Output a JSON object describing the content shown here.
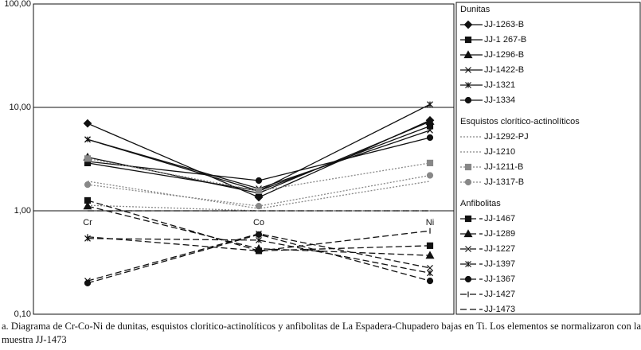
{
  "chart_data": {
    "type": "line",
    "log_scale": true,
    "grid": true,
    "categories": [
      "Cr",
      "Co",
      "Ni"
    ],
    "ylim": [
      0.1,
      100
    ],
    "yticks": [
      {
        "value": 0.1,
        "label": "0,10"
      },
      {
        "value": 1,
        "label": "1,00"
      },
      {
        "value": 10,
        "label": "10,00"
      },
      {
        "value": 100,
        "label": "100,00"
      }
    ],
    "groups": [
      {
        "name": "Dunitas",
        "color": "#111111",
        "style": "solid",
        "series": [
          {
            "name": "JJ-1263-B",
            "marker": "diamond",
            "values": [
              7.0,
              1.35,
              7.5
            ]
          },
          {
            "name": "JJ-1 267-B",
            "marker": "square",
            "values": [
              2.9,
              1.56,
              6.6
            ]
          },
          {
            "name": "JJ-1296-B",
            "marker": "triangle",
            "values": [
              3.3,
              1.48,
              7.3
            ]
          },
          {
            "name": "JJ-1422-B",
            "marker": "x",
            "values": [
              4.9,
              1.64,
              6.0
            ]
          },
          {
            "name": "JJ-1321",
            "marker": "asterisk",
            "values": [
              4.9,
              1.56,
              10.7
            ]
          },
          {
            "name": "JJ-1334",
            "marker": "circle",
            "values": [
              3.0,
              1.96,
              5.1
            ]
          }
        ]
      },
      {
        "name": "Esquistos clorítico-actinolíticos",
        "color": "#888888",
        "style": "dotted",
        "series": [
          {
            "name": "JJ-1292-PJ",
            "marker": "none",
            "values": [
              1.93,
              1.05,
              1.93
            ]
          },
          {
            "name": "JJ-1210",
            "marker": "none",
            "values": [
              1.13,
              1.0,
              1.0
            ]
          },
          {
            "name": "JJ-1211-B",
            "marker": "square",
            "values": [
              3.2,
              1.56,
              2.9
            ]
          },
          {
            "name": "JJ-1317-B",
            "marker": "circle",
            "values": [
              1.79,
              1.11,
              2.2
            ]
          }
        ]
      },
      {
        "name": "Anfibolitas",
        "color": "#111111",
        "style": "dashed",
        "series": [
          {
            "name": "JJ-1467",
            "marker": "square",
            "values": [
              1.26,
              0.41,
              0.46
            ]
          },
          {
            "name": "JJ-1289",
            "marker": "triangle",
            "values": [
              1.11,
              0.43,
              0.37
            ]
          },
          {
            "name": "JJ-1227",
            "marker": "x",
            "values": [
              0.21,
              0.6,
              0.28
            ]
          },
          {
            "name": "JJ-1397",
            "marker": "asterisk",
            "values": [
              0.54,
              0.52,
              0.25
            ]
          },
          {
            "name": "JJ-1367",
            "marker": "circle",
            "values": [
              0.2,
              0.59,
              0.21
            ]
          },
          {
            "name": "JJ-1427",
            "marker": "bar",
            "values": [
              0.56,
              0.41,
              0.64
            ]
          },
          {
            "name": "JJ-1473",
            "marker": "none",
            "values": [
              1,
              1,
              1
            ]
          }
        ]
      }
    ],
    "caption": "a. Diagrama de Cr-Co-Ni de dunitas, esquistos cloritico-actinolíticos y anfibolitas de La Espadera-Chupadero bajas en Ti.  Los elementos se normalizaron con la muestra JJ-1473"
  }
}
